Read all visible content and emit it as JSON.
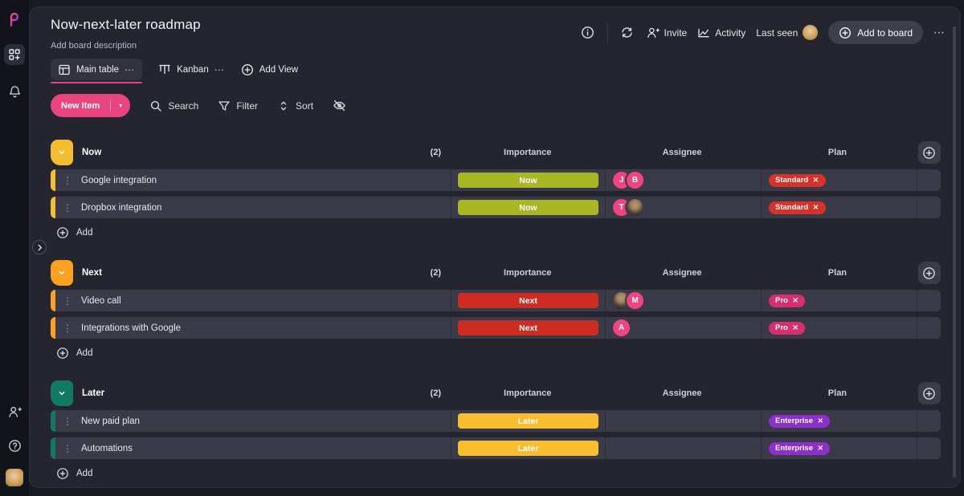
{
  "colors": {
    "accent_pink": "#E9447D",
    "avatar_pink": "#F0457E",
    "group_now": "#F5BE32",
    "group_next": "#FCA11F",
    "group_later": "#117A65"
  },
  "icons": {
    "dots_h": "⋯",
    "dots_v": "⋮",
    "remove": "×",
    "caret": "▾"
  },
  "header": {
    "title": "Now-next-later roadmap",
    "description": "Add board description",
    "invite": "Invite",
    "activity": "Activity",
    "last_seen": "Last seen",
    "add_to_board": "Add to board"
  },
  "tabs": {
    "main_table": "Main table",
    "kanban": "Kanban",
    "add_view": "Add View"
  },
  "toolbar": {
    "new_item": "New Item",
    "search": "Search",
    "filter": "Filter",
    "sort": "Sort"
  },
  "table": {
    "columns": [
      "Importance",
      "Assignee",
      "Plan"
    ],
    "add_label": "Add",
    "groups": [
      {
        "name": "Now",
        "count": "(2)",
        "color": "#F5BE32",
        "rows": [
          {
            "name": "Google integration",
            "importance": {
              "label": "Now",
              "color": "#A9B626"
            },
            "assignees": [
              {
                "type": "initial",
                "text": "J"
              },
              {
                "type": "initial",
                "text": "B"
              }
            ],
            "plan": {
              "label": "Standard",
              "color": "#D63229"
            }
          },
          {
            "name": "Dropbox integration",
            "importance": {
              "label": "Now",
              "color": "#A9B626"
            },
            "assignees": [
              {
                "type": "initial",
                "text": "T"
              },
              {
                "type": "photo",
                "variant": "ph-man"
              }
            ],
            "plan": {
              "label": "Standard",
              "color": "#D63229"
            }
          }
        ]
      },
      {
        "name": "Next",
        "count": "(2)",
        "color": "#FCA11F",
        "rows": [
          {
            "name": "Video call",
            "importance": {
              "label": "Next",
              "color": "#CE2B21"
            },
            "assignees": [
              {
                "type": "photo",
                "variant": "ph-man"
              },
              {
                "type": "initial",
                "text": "M"
              }
            ],
            "plan": {
              "label": "Pro",
              "color": "#D82D6E"
            }
          },
          {
            "name": "Integrations with Google",
            "importance": {
              "label": "Next",
              "color": "#CE2B21"
            },
            "assignees": [
              {
                "type": "initial",
                "text": "A"
              }
            ],
            "plan": {
              "label": "Pro",
              "color": "#D82D6E"
            }
          }
        ]
      },
      {
        "name": "Later",
        "count": "(2)",
        "color": "#117A65",
        "rows": [
          {
            "name": "New paid plan",
            "importance": {
              "label": "Later",
              "color": "#F8BE30"
            },
            "assignees": [],
            "plan": {
              "label": "Enterprise",
              "color": "#8E2ECC"
            }
          },
          {
            "name": "Automations",
            "importance": {
              "label": "Later",
              "color": "#F8BE30"
            },
            "assignees": [],
            "plan": {
              "label": "Enterprise",
              "color": "#8E2ECC"
            }
          }
        ]
      }
    ]
  }
}
